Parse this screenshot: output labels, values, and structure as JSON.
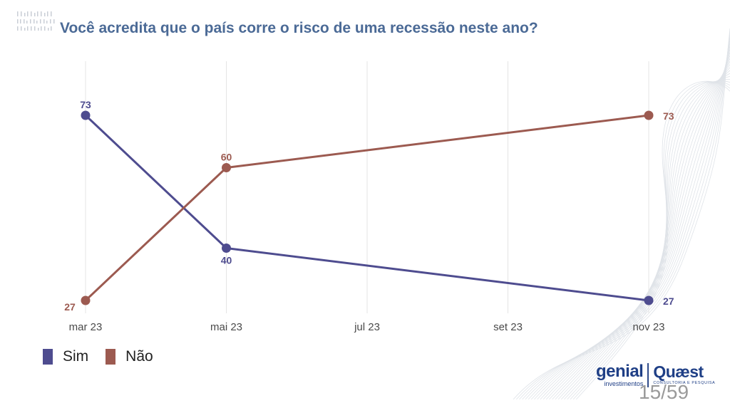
{
  "header": {
    "title": "Você acredita que o país corre o risco de uma recessão neste ano?"
  },
  "chart_data": {
    "type": "line",
    "title": "Você acredita que o país corre o risco de uma recessão neste ano?",
    "xlabel": "",
    "ylabel": "",
    "categories": [
      "mar 23",
      "mai 23",
      "jul 23",
      "set 23",
      "nov 23"
    ],
    "series": [
      {
        "name": "Sim",
        "color": "#4e4c8f",
        "points": [
          {
            "x": "mar 23",
            "value": 73,
            "label": "73"
          },
          {
            "x": "mai 23",
            "value": 40,
            "label": "40"
          },
          {
            "x": "nov 23",
            "value": 27,
            "label": "27"
          }
        ]
      },
      {
        "name": "Não",
        "color": "#9c5a50",
        "points": [
          {
            "x": "mar 23",
            "value": 27,
            "label": "27"
          },
          {
            "x": "mai 23",
            "value": 60,
            "label": "60"
          },
          {
            "x": "nov 23",
            "value": 73,
            "label": "73"
          }
        ]
      }
    ],
    "ylim": [
      27,
      73
    ],
    "grid": "vertical",
    "legend": "bottom-left"
  },
  "branding": {
    "genial_name": "genial",
    "genial_sub": "investimentos",
    "quaest_name": "Quæst",
    "quaest_sub": "CONSULTORIA E PESQUISA"
  },
  "footer": {
    "page_number": "15/59"
  }
}
